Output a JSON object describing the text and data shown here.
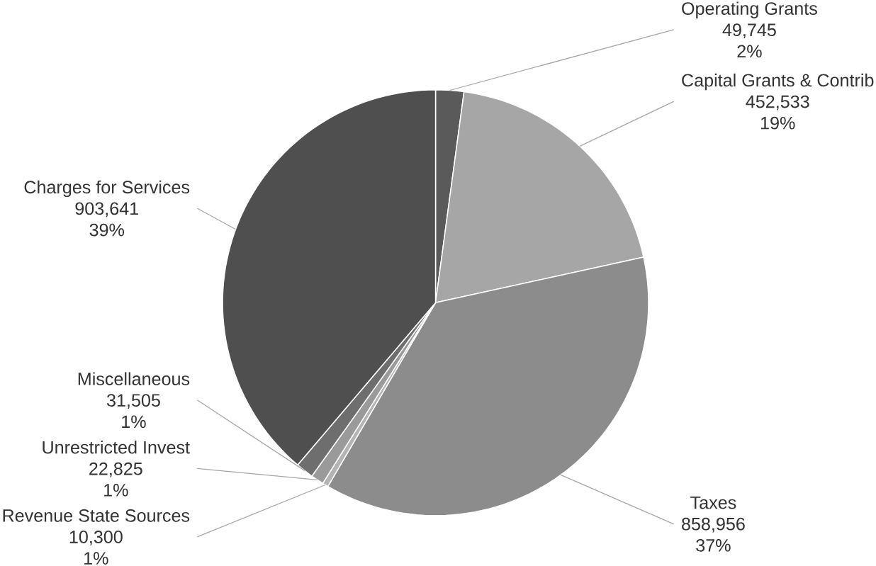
{
  "chart_data": {
    "type": "pie",
    "categories": [
      "Operating Grants",
      "Capital Grants & Contrib",
      "Taxes",
      "Revenue State Sources",
      "Unrestricted Invest",
      "Miscellaneous",
      "Charges for Services"
    ],
    "values": [
      49745,
      452533,
      858956,
      10300,
      22825,
      31505,
      903641
    ],
    "value_labels": [
      "49,745",
      "452,533",
      "858,956",
      "10,300",
      "22,825",
      "31,505",
      "903,641"
    ],
    "annotations": [
      "2%",
      "19%",
      "37%",
      "1%",
      "1%",
      "1%",
      "39%"
    ],
    "colors": [
      "#5a5a5a",
      "#a6a6a6",
      "#8c8c8c",
      "#b4b4b4",
      "#9a9a9a",
      "#6e6e6e",
      "#4f4f4f"
    ]
  }
}
